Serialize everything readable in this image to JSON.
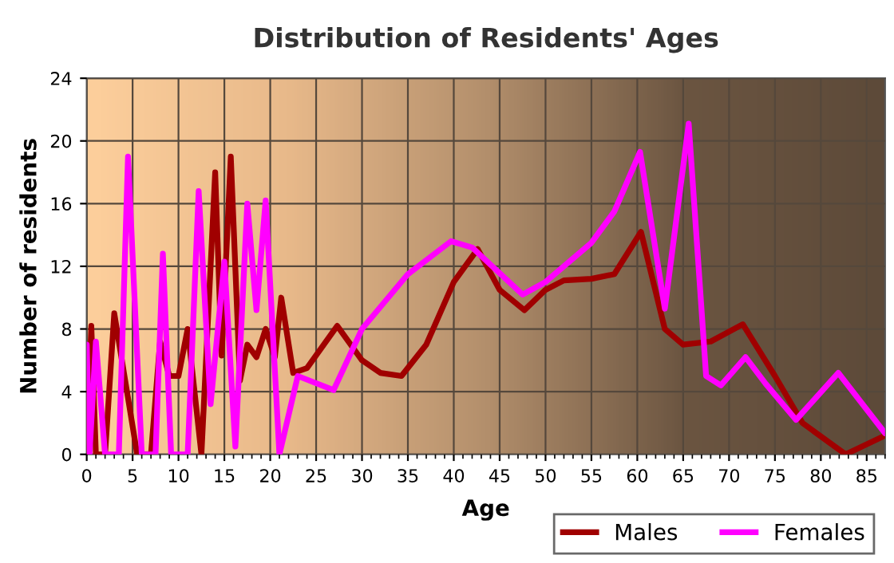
{
  "chart_data": {
    "type": "line",
    "title": "Distribution of Residents' Ages",
    "xlabel": "Age",
    "ylabel": "Number of residents",
    "xlim": [
      0,
      87
    ],
    "xticks": [
      0,
      5,
      10,
      15,
      20,
      25,
      30,
      35,
      40,
      45,
      50,
      55,
      60,
      65,
      70,
      75,
      80,
      85
    ],
    "ylim": [
      0,
      24
    ],
    "yticks": [
      0,
      4,
      8,
      12,
      16,
      20,
      24
    ],
    "grid": true,
    "legend": "bottom right",
    "marker": "none",
    "line_style": "solid",
    "series": [
      {
        "name": "Males",
        "color": "#a00000",
        "x": [
          0,
          0.5,
          1,
          2,
          3,
          5.5,
          7,
          8,
          9,
          10,
          11,
          12.5,
          14,
          14.7,
          15.7,
          16.7,
          17.5,
          18.5,
          19.5,
          20.5,
          21.2,
          22.5,
          24,
          27.3,
          30,
          32,
          34.3,
          37,
          40,
          42.6,
          45,
          47.7,
          50,
          52,
          55,
          57.5,
          60.4,
          63,
          65,
          68,
          71.5,
          75,
          78,
          82.7,
          87
        ],
        "values": [
          0,
          8.2,
          0,
          0,
          9,
          0,
          0,
          7.2,
          5,
          5,
          8,
          0,
          18,
          6.3,
          19,
          4.7,
          7,
          6.2,
          8,
          6.2,
          10,
          5.2,
          5.5,
          8.2,
          6,
          5.2,
          5,
          7,
          11,
          13.1,
          10.5,
          9.2,
          10.5,
          11.1,
          11.2,
          11.5,
          14.2,
          8,
          7,
          7.2,
          8.3,
          5,
          2,
          0,
          1.2
        ]
      },
      {
        "name": "Females",
        "color": "#ff00ff",
        "x": [
          0,
          0.3,
          1,
          2,
          3.5,
          4.5,
          6,
          7.5,
          8.3,
          9.2,
          11,
          12.2,
          13.5,
          15,
          16.2,
          17.5,
          18.5,
          19.5,
          21,
          23,
          26.9,
          30,
          35,
          39.7,
          42,
          47.5,
          50,
          55,
          57.5,
          60.3,
          63,
          65.6,
          67.5,
          69.1,
          71.8,
          74,
          77.3,
          81.9,
          87
        ],
        "values": [
          7,
          0,
          7.2,
          0,
          0,
          19,
          0,
          0,
          12.8,
          0,
          0,
          16.8,
          3.2,
          12.3,
          0.5,
          16,
          9.2,
          16.2,
          0,
          5,
          4.1,
          8,
          11.5,
          13.6,
          13.2,
          10.2,
          11,
          13.5,
          15.5,
          19.3,
          9.3,
          21.1,
          5,
          4.4,
          6.2,
          4.5,
          2.2,
          5.2,
          1.35
        ]
      }
    ]
  }
}
